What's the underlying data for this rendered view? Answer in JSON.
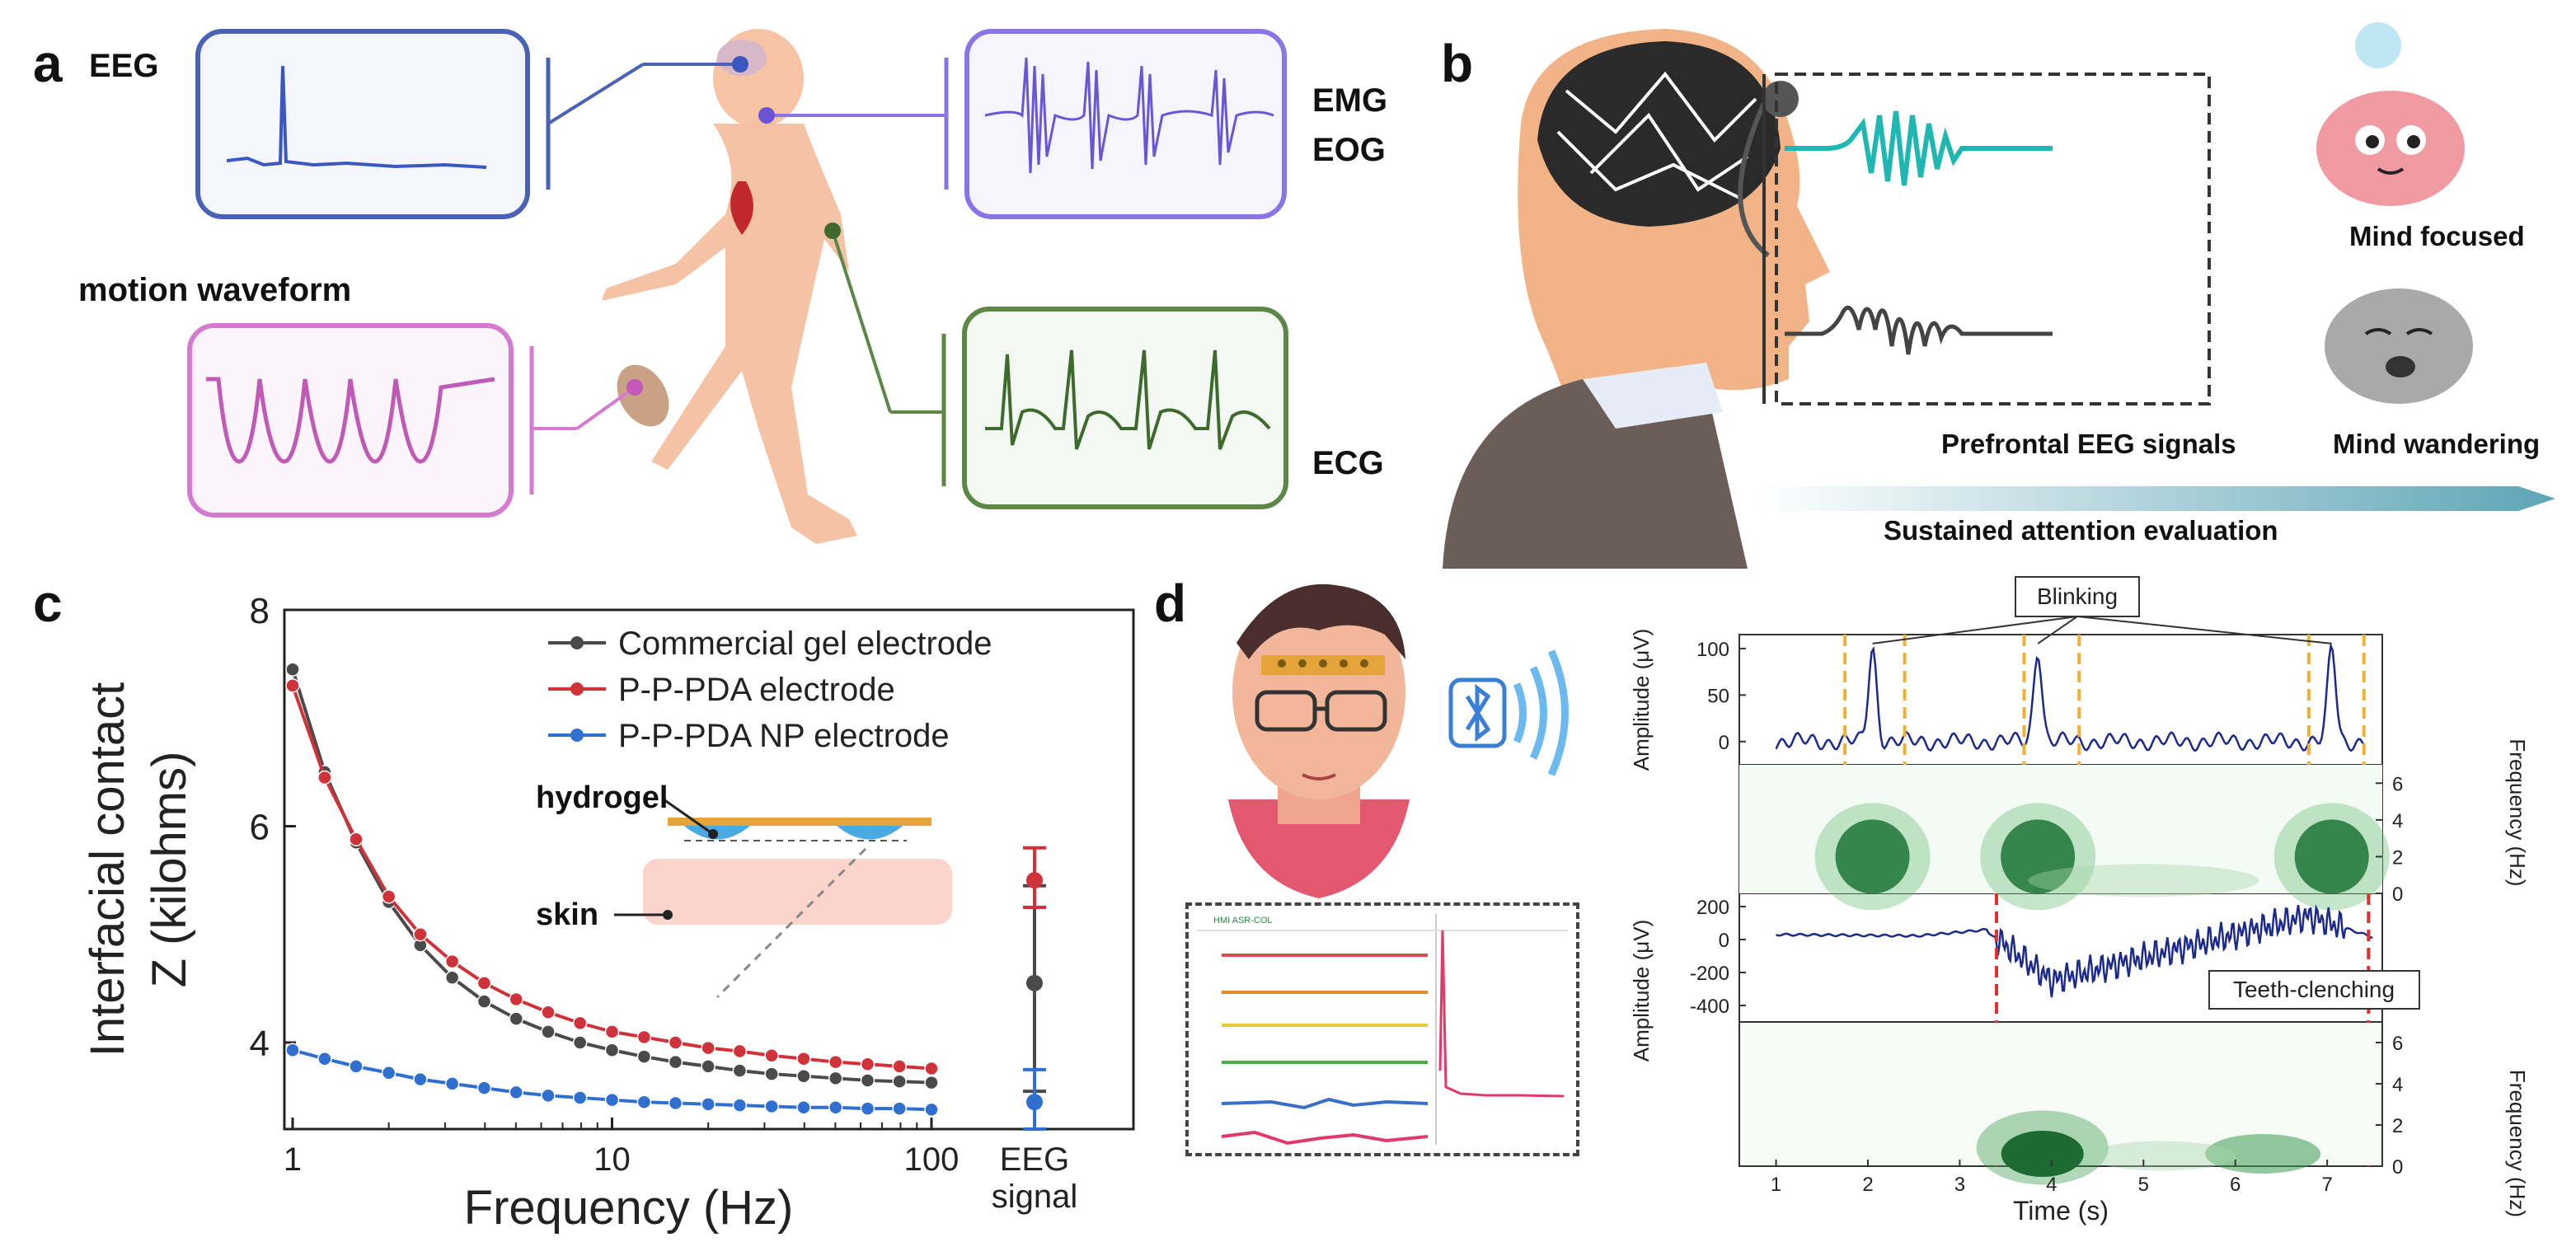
{
  "panel_a": {
    "label": "a",
    "eeg_label": "EEG",
    "emg_label": "EMG",
    "eog_label": "EOG",
    "motion_label": "motion  waveform",
    "ecg_label": "ECG"
  },
  "panel_b": {
    "label": "b",
    "mind_focused": "Mind focused",
    "mind_wandering": "Mind wandering",
    "prefrontal": "Prefrontal EEG signals",
    "sustained": "Sustained attention evaluation"
  },
  "panel_c": {
    "label": "c",
    "inset_hydrogel": "hydrogel",
    "inset_skin": "skin",
    "chart_data": {
      "type": "line",
      "xscale": "log",
      "xlabel": "Frequency (Hz)",
      "ylabel_line1": "Interfacial contact",
      "ylabel_line2": "Z (kilohms)",
      "xlim": [
        1,
        100
      ],
      "ylim": [
        3.2,
        8
      ],
      "xticks": [
        "1",
        "10",
        "100"
      ],
      "yticks": [
        "4",
        "6",
        "8"
      ],
      "eeg_axis_label_line1": "EEG",
      "eeg_axis_label_line2": "signal",
      "x": [
        1,
        1.26,
        1.58,
        2,
        2.51,
        3.16,
        3.98,
        5.01,
        6.31,
        7.94,
        10,
        12.6,
        15.8,
        20,
        25.1,
        31.6,
        39.8,
        50.1,
        63.1,
        79.4,
        100
      ],
      "series": [
        {
          "name": "Commercial gel electrode",
          "color": "#4a4a4a",
          "values": [
            7.45,
            6.5,
            5.85,
            5.3,
            4.9,
            4.6,
            4.38,
            4.22,
            4.1,
            4.0,
            3.93,
            3.87,
            3.82,
            3.78,
            3.74,
            3.71,
            3.69,
            3.67,
            3.65,
            3.64,
            3.63
          ],
          "eeg_signal": {
            "mean": 4.55,
            "low": 3.55,
            "high": 5.45
          }
        },
        {
          "name": "P-P-PDA electrode",
          "color": "#d0323a",
          "values": [
            7.3,
            6.45,
            5.88,
            5.35,
            5.0,
            4.75,
            4.55,
            4.4,
            4.28,
            4.18,
            4.1,
            4.05,
            4.0,
            3.95,
            3.92,
            3.88,
            3.85,
            3.82,
            3.8,
            3.78,
            3.76
          ],
          "eeg_signal": {
            "mean": 5.5,
            "low": 5.25,
            "high": 5.8
          }
        },
        {
          "name": "P-P-PDA NP electrode",
          "color": "#2f6fd0",
          "values": [
            3.93,
            3.85,
            3.78,
            3.72,
            3.66,
            3.62,
            3.58,
            3.54,
            3.51,
            3.49,
            3.47,
            3.45,
            3.44,
            3.43,
            3.42,
            3.41,
            3.4,
            3.4,
            3.39,
            3.39,
            3.38
          ],
          "eeg_signal": {
            "mean": 3.45,
            "low": 3.2,
            "high": 3.75
          }
        }
      ]
    }
  },
  "panel_d": {
    "label": "d",
    "device_header": "HMI ASR-COL",
    "blinking_label": "Blinking",
    "teeth_label": "Teeth-clenching",
    "chart_data": [
      {
        "type": "line",
        "ylabel": "Amplitude (μV)",
        "yticks": [
          "100",
          "50",
          "0"
        ],
        "ylim": [
          -25,
          115
        ],
        "xlim": [
          0.6,
          7.6
        ],
        "markers_x": [
          1.75,
          2.4,
          3.7,
          4.3,
          6.8,
          7.4
        ],
        "marker_color": "#f0b033",
        "spikes": [
          {
            "x": 2.05,
            "y": 100
          },
          {
            "x": 3.85,
            "y": 100
          },
          {
            "x": 7.05,
            "y": 100
          }
        ]
      },
      {
        "type": "heatmap",
        "ylabel": "Frequency (Hz)",
        "yticks": [
          "6",
          "4",
          "2",
          "0"
        ],
        "ylim": [
          0,
          7
        ]
      },
      {
        "type": "line",
        "ylabel": "Amplitude (μV)",
        "yticks": [
          "200",
          "0",
          "-200",
          "-400"
        ],
        "ylim": [
          -500,
          280
        ],
        "markers_x": [
          3.4,
          7.45
        ],
        "marker_color": "#e03030"
      },
      {
        "type": "heatmap",
        "ylabel": "Frequency (Hz)",
        "yticks": [
          "6",
          "4",
          "2",
          "0"
        ],
        "ylim": [
          0,
          7
        ],
        "xlabel": "Time (s)",
        "xticks": [
          "1",
          "2",
          "3",
          "4",
          "5",
          "6",
          "7"
        ]
      }
    ]
  }
}
